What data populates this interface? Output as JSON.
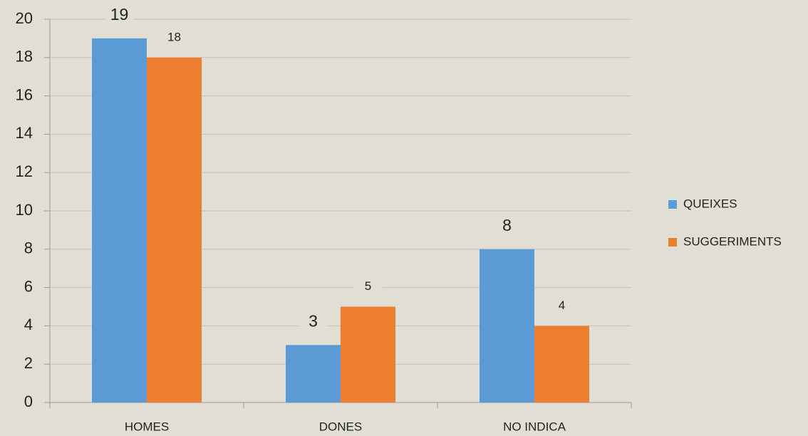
{
  "chart_data": {
    "type": "bar",
    "categories": [
      "HOMES",
      "DONES",
      "NO INDICA"
    ],
    "series": [
      {
        "name": "QUEIXES",
        "color": "#5b9bd5",
        "values": [
          19,
          3,
          8
        ]
      },
      {
        "name": "SUGGERIMENTS",
        "color": "#ed7d31",
        "values": [
          18,
          5,
          4
        ]
      }
    ],
    "ylim": [
      0,
      20
    ],
    "yticks": [
      0,
      2,
      4,
      6,
      8,
      10,
      12,
      14,
      16,
      18,
      20
    ],
    "grid": true,
    "legend": "right"
  }
}
